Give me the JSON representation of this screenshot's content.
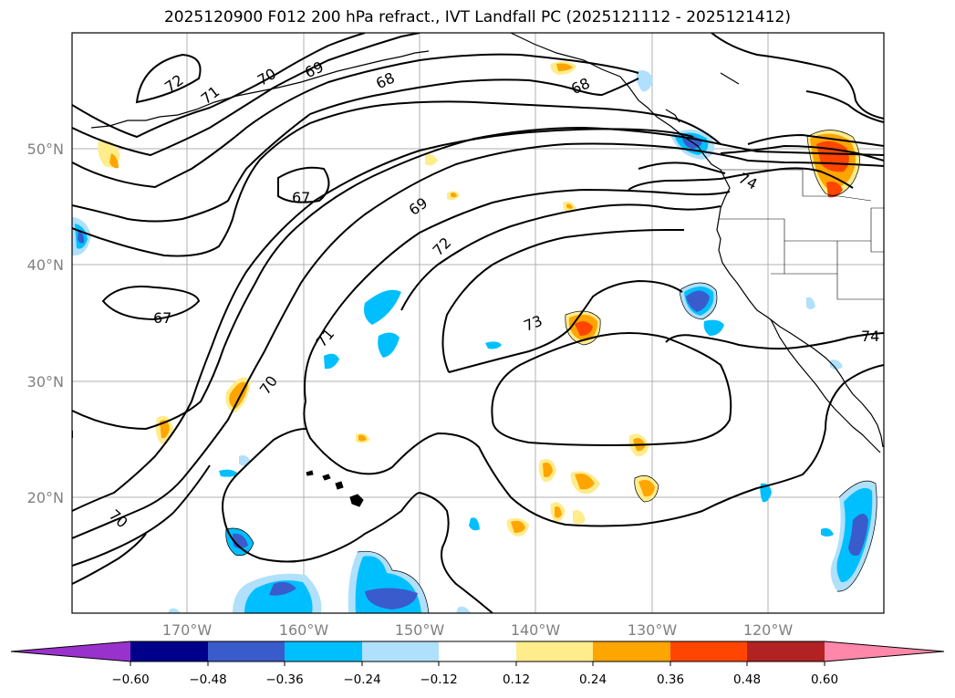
{
  "title": "2025120900 F012 200 hPa refract., IVT Landfall PC (2025121112 - 2025121412)",
  "axes": {
    "lat_labels": [
      "50°N",
      "40°N",
      "30°N",
      "20°N"
    ],
    "lon_labels": [
      "170°W",
      "160°W",
      "150°W",
      "140°W",
      "130°W",
      "120°W"
    ]
  },
  "contour_labels": [
    "72",
    "71",
    "70",
    "69",
    "68",
    "68",
    "67",
    "67",
    "69",
    "72",
    "73",
    "71",
    "70",
    "70",
    "74",
    "74"
  ],
  "colorbar": {
    "colors": [
      "#9932cc",
      "#00008b",
      "#3a5bcc",
      "#00bfff",
      "#b0e0fb",
      "#ffffff",
      "#ffec8b",
      "#ffa500",
      "#ff4500",
      "#b22222",
      "#ff88aa"
    ],
    "tick_labels": [
      "−0.60",
      "−0.48",
      "−0.36",
      "−0.24",
      "−0.12",
      "0.12",
      "0.24",
      "0.36",
      "0.48",
      "0.60"
    ]
  }
}
